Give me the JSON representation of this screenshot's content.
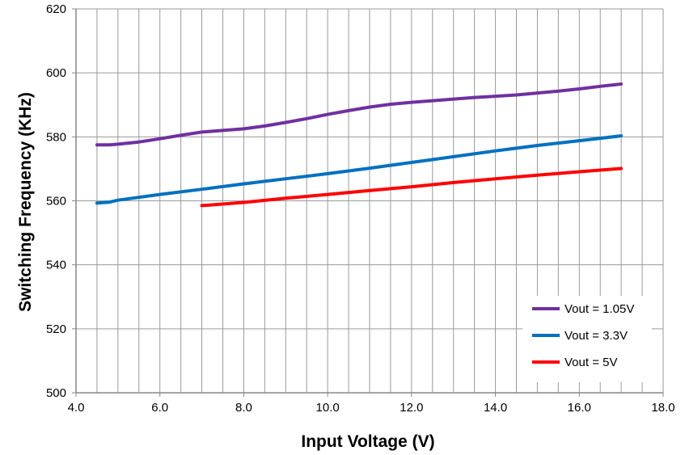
{
  "chart_data": {
    "type": "line",
    "title": "",
    "xlabel": "Input Voltage (V)",
    "ylabel": "Switching Frequency (KHz)",
    "xlim": [
      4.0,
      18.0
    ],
    "ylim": [
      500,
      620
    ],
    "x_ticks": [
      4.0,
      4.5,
      5.0,
      5.5,
      6.0,
      6.5,
      7.0,
      7.5,
      8.0,
      8.5,
      9.0,
      9.5,
      10.0,
      10.5,
      11.0,
      11.5,
      12.0,
      12.5,
      13.0,
      13.5,
      14.0,
      14.5,
      15.0,
      15.5,
      16.0,
      16.5,
      17.0,
      17.5,
      18.0
    ],
    "x_tick_labels": [
      "4.0",
      "6.0",
      "8.0",
      "10.0",
      "12.0",
      "14.0",
      "16.0",
      "18.0"
    ],
    "y_tick_labels": [
      "500",
      "520",
      "540",
      "560",
      "580",
      "600",
      "620"
    ],
    "grid": "vertical and horizontal",
    "legend_position": "bottom-right",
    "series": [
      {
        "name": "Vout = 1.05V",
        "color": "#7030a0",
        "x": [
          4.5,
          4.8,
          5.0,
          5.5,
          6.0,
          6.5,
          7.0,
          7.5,
          8.0,
          8.5,
          9.0,
          9.5,
          10.0,
          10.5,
          11.0,
          11.5,
          12.0,
          12.5,
          13.0,
          13.5,
          14.0,
          14.5,
          15.0,
          15.5,
          16.0,
          16.5,
          17.0
        ],
        "values": [
          577.5,
          577.5,
          577.7,
          578.4,
          579.4,
          580.5,
          581.5,
          582.0,
          582.5,
          583.4,
          584.5,
          585.7,
          587.0,
          588.2,
          589.3,
          590.2,
          590.8,
          591.3,
          591.8,
          592.3,
          592.7,
          593.1,
          593.7,
          594.3,
          595.0,
          595.8,
          596.5
        ]
      },
      {
        "name": "Vout = 3.3V",
        "color": "#0070c0",
        "x": [
          4.5,
          4.8,
          5.0,
          6.0,
          7.0,
          8.0,
          9.0,
          10.0,
          11.0,
          12.0,
          13.0,
          14.0,
          15.0,
          16.0,
          17.0
        ],
        "values": [
          559.3,
          559.6,
          560.2,
          562.0,
          563.6,
          565.3,
          566.9,
          568.5,
          570.2,
          572.0,
          573.8,
          575.6,
          577.3,
          578.8,
          580.3
        ]
      },
      {
        "name": "Vout = 5V",
        "color": "#ff0000",
        "x": [
          7.0,
          8.0,
          9.0,
          10.0,
          11.0,
          12.0,
          13.0,
          14.0,
          15.0,
          16.0,
          17.0
        ],
        "values": [
          558.5,
          559.5,
          560.8,
          562.0,
          563.2,
          564.4,
          565.7,
          566.9,
          568.0,
          569.1,
          570.1
        ]
      }
    ]
  }
}
